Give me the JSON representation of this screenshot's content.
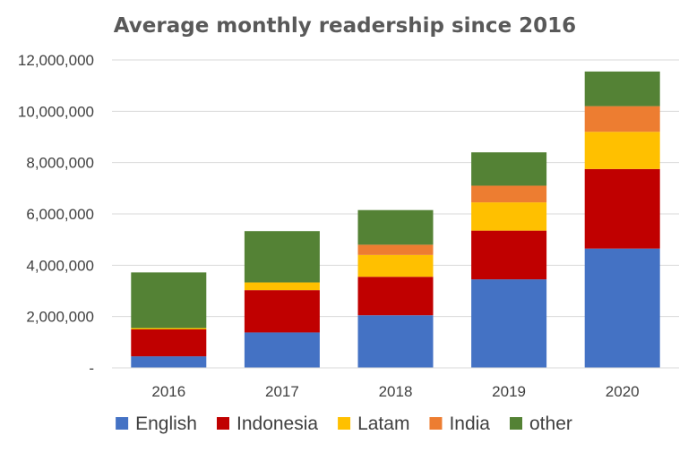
{
  "chart_data": {
    "type": "bar",
    "stacked": true,
    "title": "Average monthly readership since 2016",
    "xlabel": "",
    "ylabel": "",
    "categories": [
      "2016",
      "2017",
      "2018",
      "2019",
      "2020"
    ],
    "ylim": [
      0,
      12000000
    ],
    "yticks": [
      {
        "value": 0,
        "label": "-"
      },
      {
        "value": 2000000,
        "label": "2,000,000"
      },
      {
        "value": 4000000,
        "label": "4,000,000"
      },
      {
        "value": 6000000,
        "label": "6,000,000"
      },
      {
        "value": 8000000,
        "label": "8,000,000"
      },
      {
        "value": 10000000,
        "label": "10,000,000"
      },
      {
        "value": 12000000,
        "label": "12,000,000"
      }
    ],
    "grid": true,
    "legend_position": "bottom",
    "series": [
      {
        "name": "English",
        "color": "#4472C4",
        "values": [
          450000,
          1380000,
          2050000,
          3450000,
          4650000
        ]
      },
      {
        "name": "Indonesia",
        "color": "#C00000",
        "values": [
          1050000,
          1650000,
          1500000,
          1900000,
          3100000
        ]
      },
      {
        "name": "Latam",
        "color": "#FFC000",
        "values": [
          50000,
          300000,
          850000,
          1100000,
          1450000
        ]
      },
      {
        "name": "India",
        "color": "#ED7D31",
        "values": [
          0,
          0,
          400000,
          650000,
          1000000
        ]
      },
      {
        "name": "other",
        "color": "#548235",
        "values": [
          2170000,
          2000000,
          1350000,
          1300000,
          1350000
        ]
      }
    ]
  }
}
